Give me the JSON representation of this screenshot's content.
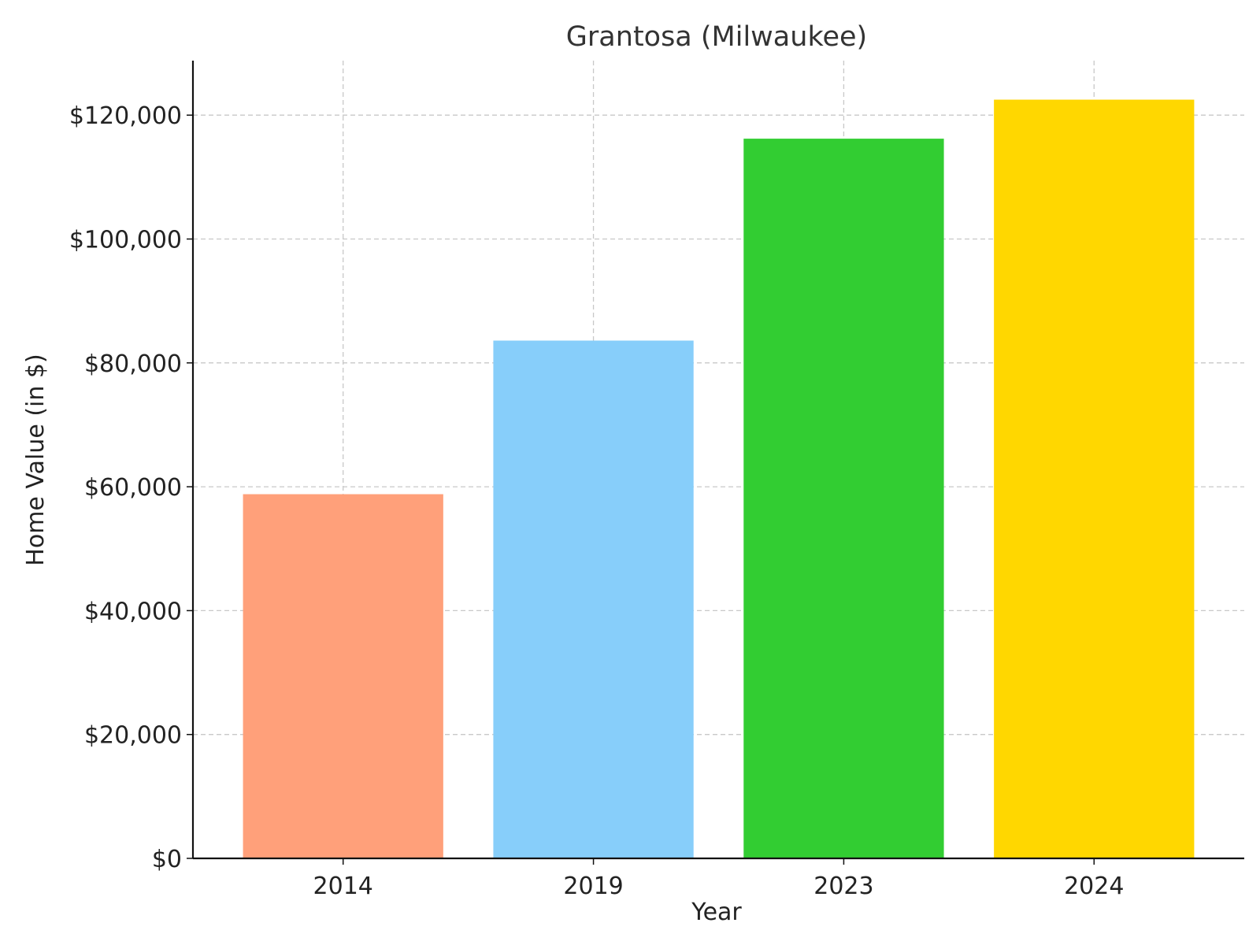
{
  "chart_data": {
    "type": "bar",
    "title": "Grantosa (Milwaukee)",
    "xlabel": "Year",
    "ylabel": "Home Value (in $)",
    "categories": [
      "2014",
      "2019",
      "2023",
      "2024"
    ],
    "values": [
      58800,
      83600,
      116200,
      122500
    ],
    "colors": [
      "#FFA07A",
      "#87CEFA",
      "#32CD32",
      "#FFD700"
    ],
    "ylim": [
      0,
      128800
    ],
    "yticks": [
      0,
      20000,
      40000,
      60000,
      80000,
      100000,
      120000
    ],
    "ytick_labels": [
      "$0",
      "$20,000",
      "$40,000",
      "$60,000",
      "$80,000",
      "$100,000",
      "$120,000"
    ],
    "grid": true,
    "legend": "none"
  }
}
